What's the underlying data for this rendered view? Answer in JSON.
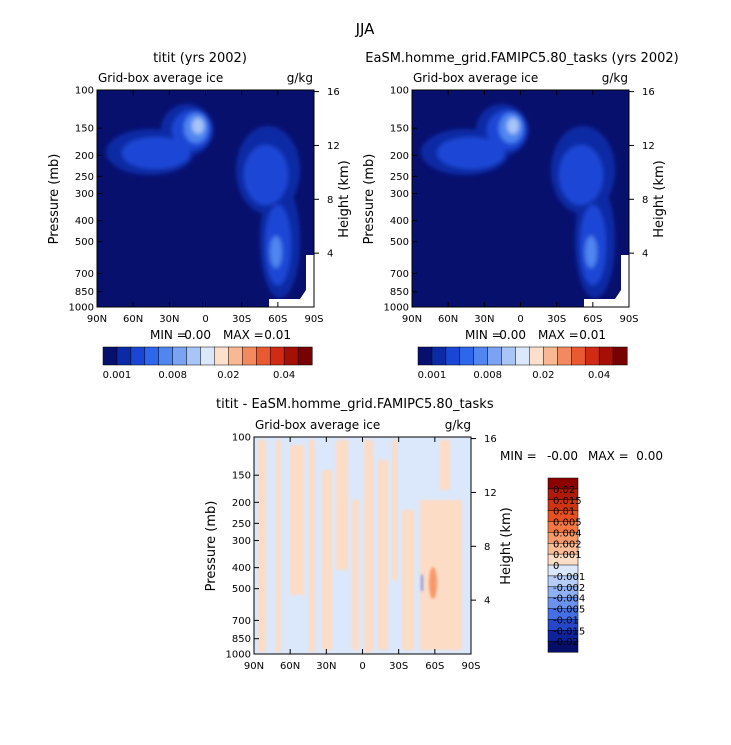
{
  "figure_title": "JJA",
  "chart_data": [
    {
      "type": "heatmap",
      "title": "titit (yrs 2002)",
      "subtitle_left": "Grid-box average ice",
      "subtitle_right": "g/kg",
      "ylabel_left": "Pressure (mb)",
      "ylabel_right": "Height (km)",
      "x_ticks": [
        "90N",
        "60N",
        "30N",
        "0",
        "30S",
        "60S",
        "90S"
      ],
      "x_range": [
        90,
        -90
      ],
      "y_ticks": [
        "100",
        "150",
        "200",
        "250",
        "300",
        "400",
        "500",
        "700",
        "850",
        "1000"
      ],
      "y_range": [
        100,
        1000
      ],
      "y_scale": "log",
      "height_ticks": [
        "16",
        "12",
        "8",
        "4"
      ],
      "stats": {
        "min_label": "MIN =",
        "min_value": "0.00",
        "max_label": "MAX =",
        "max_value": "0.01"
      },
      "colorbar": {
        "orientation": "horizontal",
        "labels": [
          "0.001",
          "0.008",
          "0.02",
          "0.04"
        ],
        "colors": [
          "#08106e",
          "#0b2aa5",
          "#1a46d6",
          "#2e66ec",
          "#4f86f0",
          "#7ba3f3",
          "#a9c4f7",
          "#dbe8fb",
          "#fde0cc",
          "#f9b894",
          "#f38a5f",
          "#ea5a32",
          "#d22b14",
          "#a41005",
          "#760201"
        ]
      }
    },
    {
      "type": "heatmap",
      "title": "EaSM.homme_grid.FAMIPC5.80_tasks (yrs 2002)",
      "subtitle_left": "Grid-box average ice",
      "subtitle_right": "g/kg",
      "ylabel_left": "Pressure (mb)",
      "ylabel_right": "Height (km)",
      "x_ticks": [
        "90N",
        "60N",
        "30N",
        "0",
        "30S",
        "60S",
        "90S"
      ],
      "x_range": [
        90,
        -90
      ],
      "y_ticks": [
        "100",
        "150",
        "200",
        "250",
        "300",
        "400",
        "500",
        "700",
        "850",
        "1000"
      ],
      "y_range": [
        100,
        1000
      ],
      "y_scale": "log",
      "height_ticks": [
        "16",
        "12",
        "8",
        "4"
      ],
      "stats": {
        "min_label": "MIN =",
        "min_value": "0.00",
        "max_label": "MAX =",
        "max_value": "0.01"
      },
      "colorbar": {
        "orientation": "horizontal",
        "labels": [
          "0.001",
          "0.008",
          "0.02",
          "0.04"
        ],
        "colors": [
          "#08106e",
          "#0b2aa5",
          "#1a46d6",
          "#2e66ec",
          "#4f86f0",
          "#7ba3f3",
          "#a9c4f7",
          "#dbe8fb",
          "#fde0cc",
          "#f9b894",
          "#f38a5f",
          "#ea5a32",
          "#d22b14",
          "#a41005",
          "#760201"
        ]
      }
    },
    {
      "type": "heatmap",
      "title": "titit - EaSM.homme_grid.FAMIPC5.80_tasks",
      "subtitle_left": "Grid-box average ice",
      "subtitle_right": "g/kg",
      "ylabel_left": "Pressure (mb)",
      "ylabel_right": "Height (km)",
      "x_ticks": [
        "90N",
        "60N",
        "30N",
        "0",
        "30S",
        "60S",
        "90S"
      ],
      "x_range": [
        90,
        -90
      ],
      "y_ticks": [
        "100",
        "150",
        "200",
        "250",
        "300",
        "400",
        "500",
        "700",
        "850",
        "1000"
      ],
      "y_range": [
        100,
        1000
      ],
      "y_scale": "log",
      "height_ticks": [
        "16",
        "12",
        "8",
        "4"
      ],
      "stats": {
        "min_label": "MIN =",
        "min_value": "-0.00",
        "max_label": "MAX =",
        "max_value": "0.00"
      },
      "colorbar": {
        "orientation": "vertical",
        "labels": [
          "0.02",
          "0.015",
          "0.01",
          "0.005",
          "0.004",
          "0.002",
          "0.001",
          "0",
          "-0.001",
          "-0.002",
          "-0.004",
          "-0.005",
          "-0.01",
          "-0.015",
          "-0.02"
        ],
        "colors": [
          "#8b0000",
          "#b01a08",
          "#cf3412",
          "#e8501f",
          "#f47642",
          "#f8996a",
          "#fbbc97",
          "#fddcc5",
          "#dbe8fb",
          "#b5cdf7",
          "#8fb0f2",
          "#6a92ee",
          "#456fe5",
          "#2347c8",
          "#0e229c",
          "#050f6a"
        ]
      }
    }
  ]
}
